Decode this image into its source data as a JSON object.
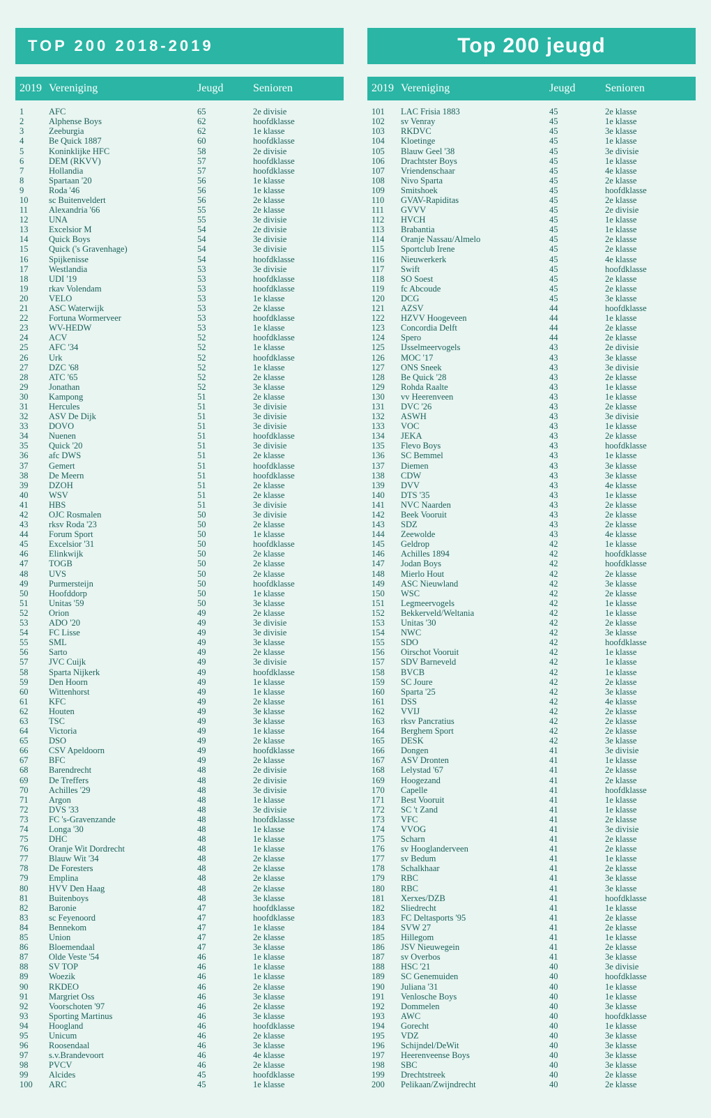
{
  "headers": {
    "left_title": "TOP 200 2018-2019",
    "right_title": "Top 200 jeugd",
    "col_rank": "2019",
    "col_name": "Vereniging",
    "col_jeugd": "Jeugd",
    "col_senioren": "Senioren"
  },
  "colors": {
    "page_bg": "#e8f5f1",
    "bar_bg": "#2ab5a4",
    "bar_text": "#ffffff",
    "body_text": "#1a5f5a"
  },
  "left_rows": [
    {
      "r": 1,
      "n": "AFC",
      "j": 65,
      "s": "2e divisie"
    },
    {
      "r": 2,
      "n": "Alphense Boys",
      "j": 62,
      "s": "hoofdklasse"
    },
    {
      "r": 3,
      "n": "Zeeburgia",
      "j": 62,
      "s": "1e klasse"
    },
    {
      "r": 4,
      "n": "Be Quick 1887",
      "j": 60,
      "s": "hoofdklasse"
    },
    {
      "r": 5,
      "n": "Koninklijke HFC",
      "j": 58,
      "s": "2e divisie"
    },
    {
      "r": 6,
      "n": "DEM (RKVV)",
      "j": 57,
      "s": "hoofdklasse"
    },
    {
      "r": 7,
      "n": "Hollandia",
      "j": 57,
      "s": "hoofdklasse"
    },
    {
      "r": 8,
      "n": "Spartaan '20",
      "j": 56,
      "s": "1e klasse"
    },
    {
      "r": 9,
      "n": "Roda '46",
      "j": 56,
      "s": "1e klasse"
    },
    {
      "r": 10,
      "n": "sc Buitenveldert",
      "j": 56,
      "s": "2e klasse"
    },
    {
      "r": 11,
      "n": "Alexandria '66",
      "j": 55,
      "s": "2e klasse"
    },
    {
      "r": 12,
      "n": "UNA",
      "j": 55,
      "s": "3e divisie"
    },
    {
      "r": 13,
      "n": "Excelsior M",
      "j": 54,
      "s": "2e divisie"
    },
    {
      "r": 14,
      "n": "Quick Boys",
      "j": 54,
      "s": "3e divisie"
    },
    {
      "r": 15,
      "n": "Quick ('s Gravenhage)",
      "j": 54,
      "s": "3e divisie"
    },
    {
      "r": 16,
      "n": "Spijkenisse",
      "j": 54,
      "s": "hoofdklasse"
    },
    {
      "r": 17,
      "n": "Westlandia",
      "j": 53,
      "s": "3e divisie"
    },
    {
      "r": 18,
      "n": "UDI '19",
      "j": 53,
      "s": "hoofdklasse"
    },
    {
      "r": 19,
      "n": "rkav Volendam",
      "j": 53,
      "s": "hoofdklasse"
    },
    {
      "r": 20,
      "n": "VELO",
      "j": 53,
      "s": "1e klasse"
    },
    {
      "r": 21,
      "n": "ASC Waterwijk",
      "j": 53,
      "s": "2e klasse"
    },
    {
      "r": 22,
      "n": "Fortuna Wormerveer",
      "j": 53,
      "s": "hoofdklasse"
    },
    {
      "r": 23,
      "n": "WV-HEDW",
      "j": 53,
      "s": "1e klasse"
    },
    {
      "r": 24,
      "n": "ACV",
      "j": 52,
      "s": "hoofdklasse"
    },
    {
      "r": 25,
      "n": "AFC '34",
      "j": 52,
      "s": "1e klasse"
    },
    {
      "r": 26,
      "n": "Urk",
      "j": 52,
      "s": "hoofdklasse"
    },
    {
      "r": 27,
      "n": "DZC '68",
      "j": 52,
      "s": "1e klasse"
    },
    {
      "r": 28,
      "n": "ATC '65",
      "j": 52,
      "s": "2e klasse"
    },
    {
      "r": 29,
      "n": "Jonathan",
      "j": 52,
      "s": "3e klasse"
    },
    {
      "r": 30,
      "n": "Kampong",
      "j": 51,
      "s": "2e klasse"
    },
    {
      "r": 31,
      "n": "Hercules",
      "j": 51,
      "s": "3e divisie"
    },
    {
      "r": 32,
      "n": "ASV De Dijk",
      "j": 51,
      "s": "3e divisie"
    },
    {
      "r": 33,
      "n": "DOVO",
      "j": 51,
      "s": "3e divisie"
    },
    {
      "r": 34,
      "n": "Nuenen",
      "j": 51,
      "s": "hoofdklasse"
    },
    {
      "r": 35,
      "n": "Quick '20",
      "j": 51,
      "s": "3e divisie"
    },
    {
      "r": 36,
      "n": "afc DWS",
      "j": 51,
      "s": "2e klasse"
    },
    {
      "r": 37,
      "n": "Gemert",
      "j": 51,
      "s": "hoofdklasse"
    },
    {
      "r": 38,
      "n": "De Meern",
      "j": 51,
      "s": "hoofdklasse"
    },
    {
      "r": 39,
      "n": "DZOH",
      "j": 51,
      "s": "2e klasse"
    },
    {
      "r": 40,
      "n": "WSV",
      "j": 51,
      "s": "2e klasse"
    },
    {
      "r": 41,
      "n": "HBS",
      "j": 51,
      "s": "3e divisie"
    },
    {
      "r": 42,
      "n": "OJC Rosmalen",
      "j": 50,
      "s": "3e divisie"
    },
    {
      "r": 43,
      "n": "rksv Roda '23",
      "j": 50,
      "s": "2e klasse"
    },
    {
      "r": 44,
      "n": "Forum Sport",
      "j": 50,
      "s": "1e klasse"
    },
    {
      "r": 45,
      "n": "Excelsior '31",
      "j": 50,
      "s": "hoofdklasse"
    },
    {
      "r": 46,
      "n": "Elinkwijk",
      "j": 50,
      "s": "2e klasse"
    },
    {
      "r": 47,
      "n": "TOGB",
      "j": 50,
      "s": "2e klasse"
    },
    {
      "r": 48,
      "n": "UVS",
      "j": 50,
      "s": "2e klasse"
    },
    {
      "r": 49,
      "n": "Purmersteijn",
      "j": 50,
      "s": "hoofdklasse"
    },
    {
      "r": 50,
      "n": "Hoofddorp",
      "j": 50,
      "s": "1e klasse"
    },
    {
      "r": 51,
      "n": "Unitas '59",
      "j": 50,
      "s": "3e klasse"
    },
    {
      "r": 52,
      "n": "Orion",
      "j": 49,
      "s": "2e klasse"
    },
    {
      "r": 53,
      "n": "ADO '20",
      "j": 49,
      "s": "3e divisie"
    },
    {
      "r": 54,
      "n": "FC Lisse",
      "j": 49,
      "s": "3e divisie"
    },
    {
      "r": 55,
      "n": "SML",
      "j": 49,
      "s": "3e klasse"
    },
    {
      "r": 56,
      "n": "Sarto",
      "j": 49,
      "s": "2e klasse"
    },
    {
      "r": 57,
      "n": "JVC Cuijk",
      "j": 49,
      "s": "3e divisie"
    },
    {
      "r": 58,
      "n": "Sparta Nijkerk",
      "j": 49,
      "s": "hoofdklasse"
    },
    {
      "r": 59,
      "n": "Den Hoorn",
      "j": 49,
      "s": "1e klasse"
    },
    {
      "r": 60,
      "n": "Wittenhorst",
      "j": 49,
      "s": "1e klasse"
    },
    {
      "r": 61,
      "n": "KFC",
      "j": 49,
      "s": "2e klasse"
    },
    {
      "r": 62,
      "n": "Houten",
      "j": 49,
      "s": "3e klasse"
    },
    {
      "r": 63,
      "n": "TSC",
      "j": 49,
      "s": "3e klasse"
    },
    {
      "r": 64,
      "n": "Victoria",
      "j": 49,
      "s": "1e klasse"
    },
    {
      "r": 65,
      "n": "DSO",
      "j": 49,
      "s": "2e klasse"
    },
    {
      "r": 66,
      "n": "CSV Apeldoorn",
      "j": 49,
      "s": "hoofdklasse"
    },
    {
      "r": 67,
      "n": "BFC",
      "j": 49,
      "s": "2e klasse"
    },
    {
      "r": 68,
      "n": "Barendrecht",
      "j": 48,
      "s": "2e divisie"
    },
    {
      "r": 69,
      "n": "De Treffers",
      "j": 48,
      "s": "2e divisie"
    },
    {
      "r": 70,
      "n": "Achilles '29",
      "j": 48,
      "s": "3e divisie"
    },
    {
      "r": 71,
      "n": "Argon",
      "j": 48,
      "s": "1e klasse"
    },
    {
      "r": 72,
      "n": "DVS '33",
      "j": 48,
      "s": "3e divisie"
    },
    {
      "r": 73,
      "n": "FC 's-Gravenzande",
      "j": 48,
      "s": "hoofdklasse"
    },
    {
      "r": 74,
      "n": "Longa '30",
      "j": 48,
      "s": "1e klasse"
    },
    {
      "r": 75,
      "n": "DHC",
      "j": 48,
      "s": "1e klasse"
    },
    {
      "r": 76,
      "n": "Oranje Wit Dordrecht",
      "j": 48,
      "s": "1e klasse"
    },
    {
      "r": 77,
      "n": "Blauw Wit '34",
      "j": 48,
      "s": "2e klasse"
    },
    {
      "r": 78,
      "n": "De Foresters",
      "j": 48,
      "s": "2e klasse"
    },
    {
      "r": 79,
      "n": "Emplina",
      "j": 48,
      "s": "2e klasse"
    },
    {
      "r": 80,
      "n": "HVV Den Haag",
      "j": 48,
      "s": "2e klasse"
    },
    {
      "r": 81,
      "n": "Buitenboys",
      "j": 48,
      "s": "3e klasse"
    },
    {
      "r": 82,
      "n": "Baronie",
      "j": 47,
      "s": "hoofdklasse"
    },
    {
      "r": 83,
      "n": "sc Feyenoord",
      "j": 47,
      "s": "hoofdklasse"
    },
    {
      "r": 84,
      "n": "Bennekom",
      "j": 47,
      "s": "1e klasse"
    },
    {
      "r": 85,
      "n": "Union",
      "j": 47,
      "s": "2e klasse"
    },
    {
      "r": 86,
      "n": "Bloemendaal",
      "j": 47,
      "s": "3e klasse"
    },
    {
      "r": 87,
      "n": "Olde Veste '54",
      "j": 46,
      "s": "1e klasse"
    },
    {
      "r": 88,
      "n": "SV TOP",
      "j": 46,
      "s": "1e klasse"
    },
    {
      "r": 89,
      "n": "Woezik",
      "j": 46,
      "s": "1e klasse"
    },
    {
      "r": 90,
      "n": "RKDEO",
      "j": 46,
      "s": "2e klasse"
    },
    {
      "r": 91,
      "n": "Margriet Oss",
      "j": 46,
      "s": "3e klasse"
    },
    {
      "r": 92,
      "n": "Voorschoten '97",
      "j": 46,
      "s": "2e klasse"
    },
    {
      "r": 93,
      "n": "Sporting Martinus",
      "j": 46,
      "s": "3e klasse"
    },
    {
      "r": 94,
      "n": "Hoogland",
      "j": 46,
      "s": "hoofdklasse"
    },
    {
      "r": 95,
      "n": "Unicum",
      "j": 46,
      "s": "2e klasse"
    },
    {
      "r": 96,
      "n": "Roosendaal",
      "j": 46,
      "s": "3e klasse"
    },
    {
      "r": 97,
      "n": "s.v.Brandevoort",
      "j": 46,
      "s": "4e klasse"
    },
    {
      "r": 98,
      "n": "PVCV",
      "j": 46,
      "s": "2e klasse"
    },
    {
      "r": 99,
      "n": "Alcides",
      "j": 45,
      "s": "hoofdklasse"
    },
    {
      "r": 100,
      "n": "ARC",
      "j": 45,
      "s": "1e klasse"
    }
  ],
  "right_rows": [
    {
      "r": 101,
      "n": "LAC Frisia 1883",
      "j": 45,
      "s": "2e klasse"
    },
    {
      "r": 102,
      "n": "sv Venray",
      "j": 45,
      "s": "1e klasse"
    },
    {
      "r": 103,
      "n": "RKDVC",
      "j": 45,
      "s": "3e klasse"
    },
    {
      "r": 104,
      "n": "Kloetinge",
      "j": 45,
      "s": "1e klasse"
    },
    {
      "r": 105,
      "n": "Blauw Geel '38",
      "j": 45,
      "s": "3e divisie"
    },
    {
      "r": 106,
      "n": "Drachtster Boys",
      "j": 45,
      "s": "1e klasse"
    },
    {
      "r": 107,
      "n": "Vriendenschaar",
      "j": 45,
      "s": "4e klasse"
    },
    {
      "r": 108,
      "n": "Nivo Sparta",
      "j": 45,
      "s": "2e klasse"
    },
    {
      "r": 109,
      "n": "Smitshoek",
      "j": 45,
      "s": "hoofdklasse"
    },
    {
      "r": 110,
      "n": "GVAV-Rapiditas",
      "j": 45,
      "s": "2e klasse"
    },
    {
      "r": 111,
      "n": "GVVV",
      "j": 45,
      "s": "2e divisie"
    },
    {
      "r": 112,
      "n": "HVCH",
      "j": 45,
      "s": "1e klasse"
    },
    {
      "r": 113,
      "n": "Brabantia",
      "j": 45,
      "s": "1e klasse"
    },
    {
      "r": 114,
      "n": "Oranje Nassau/Almelo",
      "j": 45,
      "s": "2e klasse"
    },
    {
      "r": 115,
      "n": "Sportclub Irene",
      "j": 45,
      "s": "2e klasse"
    },
    {
      "r": 116,
      "n": "Nieuwerkerk",
      "j": 45,
      "s": "4e klasse"
    },
    {
      "r": 117,
      "n": "Swift",
      "j": 45,
      "s": "hoofdklasse"
    },
    {
      "r": 118,
      "n": "SO Soest",
      "j": 45,
      "s": "2e klasse"
    },
    {
      "r": 119,
      "n": "fc Abcoude",
      "j": 45,
      "s": "2e klasse"
    },
    {
      "r": 120,
      "n": "DCG",
      "j": 45,
      "s": "3e klasse"
    },
    {
      "r": 121,
      "n": "AZSV",
      "j": 44,
      "s": "hoofdklasse"
    },
    {
      "r": 122,
      "n": "HZVV Hoogeveen",
      "j": 44,
      "s": "1e klasse"
    },
    {
      "r": 123,
      "n": "Concordia Delft",
      "j": 44,
      "s": "2e klasse"
    },
    {
      "r": 124,
      "n": "Spero",
      "j": 44,
      "s": "2e klasse"
    },
    {
      "r": 125,
      "n": "IJsselmeervogels",
      "j": 43,
      "s": "2e divisie"
    },
    {
      "r": 126,
      "n": "MOC '17",
      "j": 43,
      "s": "3e klasse"
    },
    {
      "r": 127,
      "n": "ONS Sneek",
      "j": 43,
      "s": "3e divisie"
    },
    {
      "r": 128,
      "n": "Be Quick '28",
      "j": 43,
      "s": "2e klasse"
    },
    {
      "r": 129,
      "n": "Rohda Raalte",
      "j": 43,
      "s": "1e klasse"
    },
    {
      "r": 130,
      "n": "vv Heerenveen",
      "j": 43,
      "s": "1e klasse"
    },
    {
      "r": 131,
      "n": "DVC '26",
      "j": 43,
      "s": "2e klasse"
    },
    {
      "r": 132,
      "n": "ASWH",
      "j": 43,
      "s": "3e divisie"
    },
    {
      "r": 133,
      "n": "VOC",
      "j": 43,
      "s": "1e klasse"
    },
    {
      "r": 134,
      "n": "JEKA",
      "j": 43,
      "s": "2e klasse"
    },
    {
      "r": 135,
      "n": "Flevo Boys",
      "j": 43,
      "s": "hoofdklasse"
    },
    {
      "r": 136,
      "n": "SC Bemmel",
      "j": 43,
      "s": "1e klasse"
    },
    {
      "r": 137,
      "n": "Diemen",
      "j": 43,
      "s": "3e klasse"
    },
    {
      "r": 138,
      "n": "CDW",
      "j": 43,
      "s": "3e klasse"
    },
    {
      "r": 139,
      "n": "DVV",
      "j": 43,
      "s": "4e klasse"
    },
    {
      "r": 140,
      "n": "DTS '35",
      "j": 43,
      "s": "1e klasse"
    },
    {
      "r": 141,
      "n": "NVC Naarden",
      "j": 43,
      "s": "2e klasse"
    },
    {
      "r": 142,
      "n": "Beek Vooruit",
      "j": 43,
      "s": "2e klasse"
    },
    {
      "r": 143,
      "n": "SDZ",
      "j": 43,
      "s": "2e klasse"
    },
    {
      "r": 144,
      "n": "Zeewolde",
      "j": 43,
      "s": "4e klasse"
    },
    {
      "r": 145,
      "n": "Geldrop",
      "j": 42,
      "s": "1e klasse"
    },
    {
      "r": 146,
      "n": "Achilles 1894",
      "j": 42,
      "s": "hoofdklasse"
    },
    {
      "r": 147,
      "n": "Jodan Boys",
      "j": 42,
      "s": "hoofdklasse"
    },
    {
      "r": 148,
      "n": "Mierlo Hout",
      "j": 42,
      "s": "2e klasse"
    },
    {
      "r": 149,
      "n": "ASC Nieuwland",
      "j": 42,
      "s": "3e klasse"
    },
    {
      "r": 150,
      "n": "WSC",
      "j": 42,
      "s": "2e klasse"
    },
    {
      "r": 151,
      "n": "Legmeervogels",
      "j": 42,
      "s": "1e klasse"
    },
    {
      "r": 152,
      "n": "Bekkerveld/Weltania",
      "j": 42,
      "s": "1e klasse"
    },
    {
      "r": 153,
      "n": "Unitas '30",
      "j": 42,
      "s": "2e klasse"
    },
    {
      "r": 154,
      "n": "NWC",
      "j": 42,
      "s": "3e klasse"
    },
    {
      "r": 155,
      "n": "SDO",
      "j": 42,
      "s": "hoofdklasse"
    },
    {
      "r": 156,
      "n": "Oirschot Vooruit",
      "j": 42,
      "s": "1e klasse"
    },
    {
      "r": 157,
      "n": "SDV Barneveld",
      "j": 42,
      "s": "1e klasse"
    },
    {
      "r": 158,
      "n": "BVCB",
      "j": 42,
      "s": "1e klasse"
    },
    {
      "r": 159,
      "n": "SC Joure",
      "j": 42,
      "s": "2e klasse"
    },
    {
      "r": 160,
      "n": "Sparta '25",
      "j": 42,
      "s": "3e klasse"
    },
    {
      "r": 161,
      "n": "DSS",
      "j": 42,
      "s": "4e klasse"
    },
    {
      "r": 162,
      "n": "VVIJ",
      "j": 42,
      "s": "2e klasse"
    },
    {
      "r": 163,
      "n": "rksv Pancratius",
      "j": 42,
      "s": "2e klasse"
    },
    {
      "r": 164,
      "n": "Berghem Sport",
      "j": 42,
      "s": "2e klasse"
    },
    {
      "r": 165,
      "n": "DESK",
      "j": 42,
      "s": "3e klasse"
    },
    {
      "r": 166,
      "n": "Dongen",
      "j": 41,
      "s": "3e divisie"
    },
    {
      "r": 167,
      "n": "ASV Dronten",
      "j": 41,
      "s": "1e klasse"
    },
    {
      "r": 168,
      "n": "Lelystad '67",
      "j": 41,
      "s": "2e klasse"
    },
    {
      "r": 169,
      "n": "Hoogezand",
      "j": 41,
      "s": "2e klasse"
    },
    {
      "r": 170,
      "n": "Capelle",
      "j": 41,
      "s": "hoofdklasse"
    },
    {
      "r": 171,
      "n": "Best Vooruit",
      "j": 41,
      "s": "1e klasse"
    },
    {
      "r": 172,
      "n": "SC 't Zand",
      "j": 41,
      "s": "1e klasse"
    },
    {
      "r": 173,
      "n": "VFC",
      "j": 41,
      "s": "2e klasse"
    },
    {
      "r": 174,
      "n": "VVOG",
      "j": 41,
      "s": "3e divisie"
    },
    {
      "r": 175,
      "n": "Scharn",
      "j": 41,
      "s": "2e klasse"
    },
    {
      "r": 176,
      "n": "sv Hooglanderveen",
      "j": 41,
      "s": "2e klasse"
    },
    {
      "r": 177,
      "n": "sv Bedum",
      "j": 41,
      "s": "1e klasse"
    },
    {
      "r": 178,
      "n": "Schalkhaar",
      "j": 41,
      "s": "2e klasse"
    },
    {
      "r": 179,
      "n": "RBC",
      "j": 41,
      "s": "3e klasse"
    },
    {
      "r": 180,
      "n": "RBC",
      "j": 41,
      "s": "3e klasse"
    },
    {
      "r": 181,
      "n": "Xerxes/DZB",
      "j": 41,
      "s": "hoofdklasse"
    },
    {
      "r": 182,
      "n": "Sliedrecht",
      "j": 41,
      "s": "1e klasse"
    },
    {
      "r": 183,
      "n": "FC Deltasports '95",
      "j": 41,
      "s": "2e klasse"
    },
    {
      "r": 184,
      "n": "SVW 27",
      "j": 41,
      "s": "2e klasse"
    },
    {
      "r": 185,
      "n": "Hillegom",
      "j": 41,
      "s": "1e klasse"
    },
    {
      "r": 186,
      "n": "JSV Nieuwegein",
      "j": 41,
      "s": "2e klasse"
    },
    {
      "r": 187,
      "n": "sv Overbos",
      "j": 41,
      "s": "3e klasse"
    },
    {
      "r": 188,
      "n": "HSC '21",
      "j": 40,
      "s": "3e divisie"
    },
    {
      "r": 189,
      "n": "SC Genemuiden",
      "j": 40,
      "s": "hoofdklasse"
    },
    {
      "r": 190,
      "n": "Juliana '31",
      "j": 40,
      "s": "1e klasse"
    },
    {
      "r": 191,
      "n": "Venlosche Boys",
      "j": 40,
      "s": "1e klasse"
    },
    {
      "r": 192,
      "n": "Dommelen",
      "j": 40,
      "s": "3e klasse"
    },
    {
      "r": 193,
      "n": "AWC",
      "j": 40,
      "s": "hoofdklasse"
    },
    {
      "r": 194,
      "n": "Gorecht",
      "j": 40,
      "s": "1e klasse"
    },
    {
      "r": 195,
      "n": "VDZ",
      "j": 40,
      "s": "3e klasse"
    },
    {
      "r": 196,
      "n": "Schijndel/DeWit",
      "j": 40,
      "s": "3e klasse"
    },
    {
      "r": 197,
      "n": "Heerenveense Boys",
      "j": 40,
      "s": "3e klasse"
    },
    {
      "r": 198,
      "n": "SBC",
      "j": 40,
      "s": "3e klasse"
    },
    {
      "r": 199,
      "n": "Drechtstreek",
      "j": 40,
      "s": "2e klasse"
    },
    {
      "r": 200,
      "n": "Pelikaan/Zwijndrecht",
      "j": 40,
      "s": "2e klasse"
    }
  ]
}
